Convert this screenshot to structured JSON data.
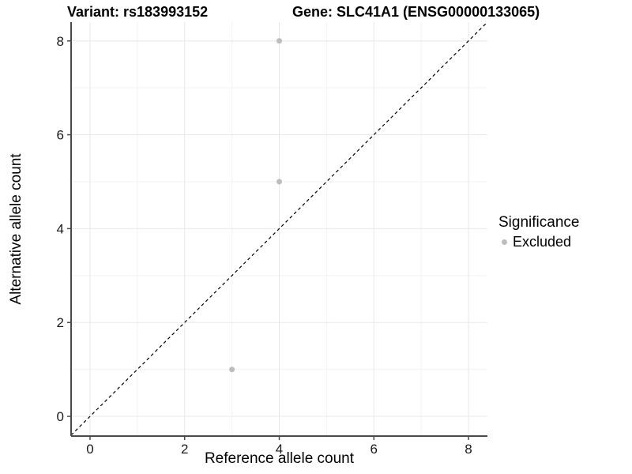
{
  "titles": {
    "left": "Variant: rs183993152",
    "right": "Gene: SLC41A1 (ENSG00000133065)"
  },
  "legend": {
    "title": "Significance",
    "items": [
      {
        "label": "Excluded",
        "color": "#bdbdbd"
      }
    ]
  },
  "colors": {
    "background": "#ffffff",
    "grid_major": "#e8e8e8",
    "grid_minor": "#f3f3f3",
    "axis_line": "#4a4a4a",
    "tick_text": "#1a1a1a",
    "point": "#bdbdbd",
    "reference_line": "#000000"
  },
  "chart_data": {
    "type": "scatter",
    "title": "Variant: rs183993152    Gene: SLC41A1 (ENSG00000133065)",
    "xlabel": "Reference allele count",
    "ylabel": "Alternative allele count",
    "x": {
      "ticks": [
        0,
        2,
        4,
        6,
        8
      ],
      "minor_ticks": [
        1,
        3,
        5,
        7
      ],
      "range": [
        -0.4,
        8.4
      ]
    },
    "y": {
      "ticks": [
        0,
        2,
        4,
        6,
        8
      ],
      "minor_ticks": [
        1,
        3,
        5,
        7
      ],
      "range": [
        -0.42,
        8.4
      ]
    },
    "series": [
      {
        "name": "Excluded",
        "color": "#bdbdbd",
        "points": [
          {
            "x": 4,
            "y": 8
          },
          {
            "x": 4,
            "y": 5
          },
          {
            "x": 3,
            "y": 1
          }
        ]
      }
    ],
    "reference_line": {
      "kind": "identity",
      "equation": "y = x",
      "style": "dashed",
      "color": "#000000"
    },
    "grid": true,
    "legend_position": "right",
    "legend_title": "Significance"
  }
}
